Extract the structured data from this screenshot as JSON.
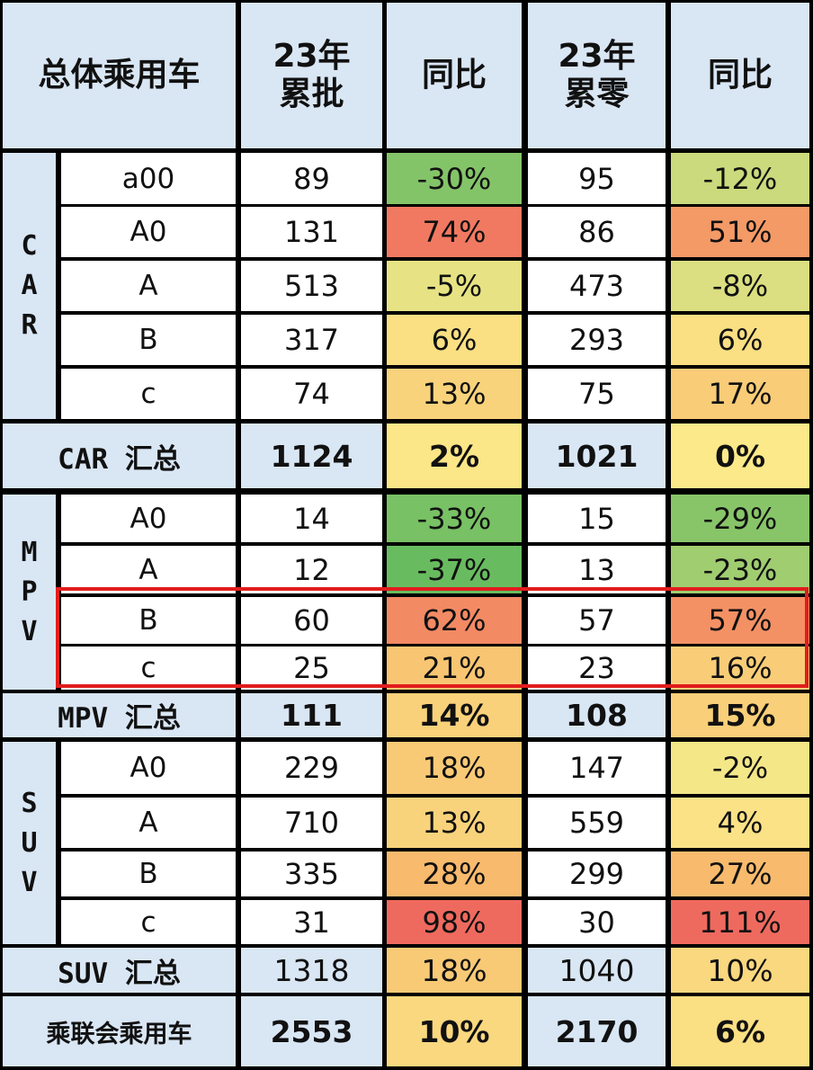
{
  "header": {
    "corner": "总体乘用车",
    "col1": "23年\n累批",
    "col2": "同比",
    "col3": "23年\n累零",
    "col4": "同比"
  },
  "groups": [
    {
      "label": "C\nA\nR",
      "rows": [
        {
          "seg": "a00",
          "wholesale": "89",
          "wholesale_yoy": "-30%",
          "retail": "95",
          "retail_yoy": "-12%"
        },
        {
          "seg": "A0",
          "wholesale": "131",
          "wholesale_yoy": "74%",
          "retail": "86",
          "retail_yoy": "51%"
        },
        {
          "seg": "A",
          "wholesale": "513",
          "wholesale_yoy": "-5%",
          "retail": "473",
          "retail_yoy": "-8%"
        },
        {
          "seg": "B",
          "wholesale": "317",
          "wholesale_yoy": "6%",
          "retail": "293",
          "retail_yoy": "6%"
        },
        {
          "seg": "c",
          "wholesale": "74",
          "wholesale_yoy": "13%",
          "retail": "75",
          "retail_yoy": "17%"
        }
      ],
      "summary": {
        "label": "CAR 汇总",
        "wholesale": "1124",
        "wholesale_yoy": "2%",
        "retail": "1021",
        "retail_yoy": "0%"
      }
    },
    {
      "label": "M\nP\nV",
      "rows": [
        {
          "seg": "A0",
          "wholesale": "14",
          "wholesale_yoy": "-33%",
          "retail": "15",
          "retail_yoy": "-29%"
        },
        {
          "seg": "A",
          "wholesale": "12",
          "wholesale_yoy": "-37%",
          "retail": "13",
          "retail_yoy": "-23%"
        },
        {
          "seg": "B",
          "wholesale": "60",
          "wholesale_yoy": "62%",
          "retail": "57",
          "retail_yoy": "57%"
        },
        {
          "seg": "c",
          "wholesale": "25",
          "wholesale_yoy": "21%",
          "retail": "23",
          "retail_yoy": "16%"
        }
      ],
      "summary": {
        "label": "MPV 汇总",
        "wholesale": "111",
        "wholesale_yoy": "14%",
        "retail": "108",
        "retail_yoy": "15%"
      }
    },
    {
      "label": "S\nU\nV",
      "rows": [
        {
          "seg": "A0",
          "wholesale": "229",
          "wholesale_yoy": "18%",
          "retail": "147",
          "retail_yoy": "-2%"
        },
        {
          "seg": "A",
          "wholesale": "710",
          "wholesale_yoy": "13%",
          "retail": "559",
          "retail_yoy": "4%"
        },
        {
          "seg": "B",
          "wholesale": "335",
          "wholesale_yoy": "28%",
          "retail": "299",
          "retail_yoy": "27%"
        },
        {
          "seg": "c",
          "wholesale": "31",
          "wholesale_yoy": "98%",
          "retail": "30",
          "retail_yoy": "111%"
        }
      ],
      "summary": {
        "label": "SUV 汇总",
        "wholesale": "1318",
        "wholesale_yoy": "18%",
        "retail": "1040",
        "retail_yoy": "10%",
        "plain": true
      }
    }
  ],
  "total": {
    "label": "乘联会乘用车",
    "wholesale": "2553",
    "wholesale_yoy": "10%",
    "retail": "2170",
    "retail_yoy": "6%"
  },
  "colors": {
    "header_bg": "#d9e6f4",
    "highlight_border": "#e21d1d",
    "scale_green": "#5cb85c",
    "scale_yellow": "#fbe98a",
    "scale_red": "#ef6a5e"
  }
}
